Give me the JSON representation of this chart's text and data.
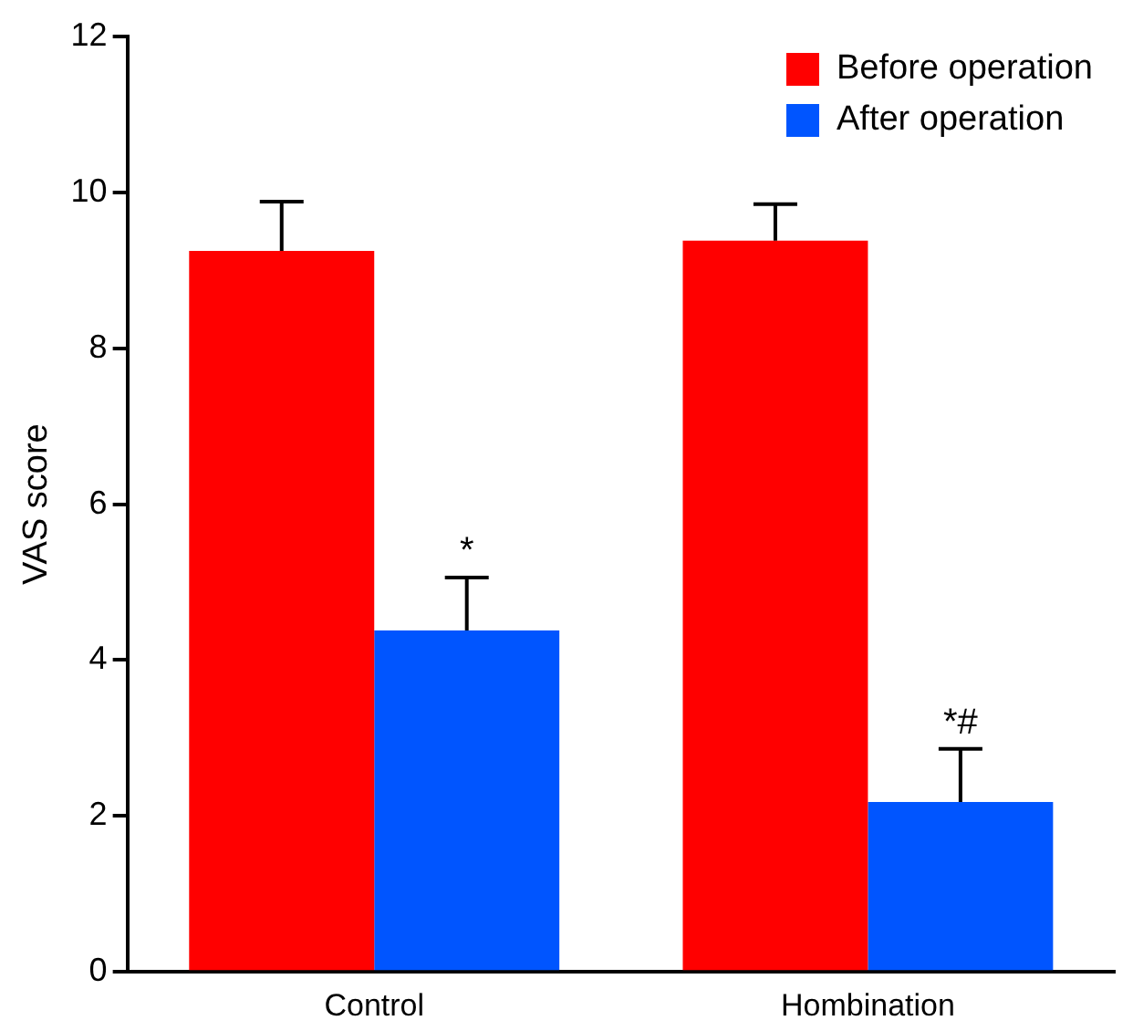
{
  "chart_data": {
    "type": "bar",
    "ylabel": "VAS score",
    "categories": [
      "Control",
      "Hombination"
    ],
    "series": [
      {
        "name": "Before operation",
        "color": "#ff0000",
        "values": [
          9.25,
          9.38
        ],
        "errors": [
          [
            9.25,
            9.88
          ],
          [
            9.38,
            9.85
          ]
        ]
      },
      {
        "name": "After operation",
        "color": "#0055ff",
        "values": [
          4.38,
          2.18
        ],
        "errors": [
          [
            4.38,
            5.06
          ],
          [
            2.18,
            2.86
          ]
        ]
      }
    ],
    "ylim": [
      0,
      12
    ],
    "yticks": [
      0,
      2,
      4,
      6,
      8,
      10,
      12
    ],
    "grid": false,
    "legend": "top right",
    "annotations": [
      {
        "text": "*",
        "x": "Control",
        "y": 5.06
      },
      {
        "text": "*#",
        "x": "Hombination",
        "y": 2.86
      }
    ]
  }
}
